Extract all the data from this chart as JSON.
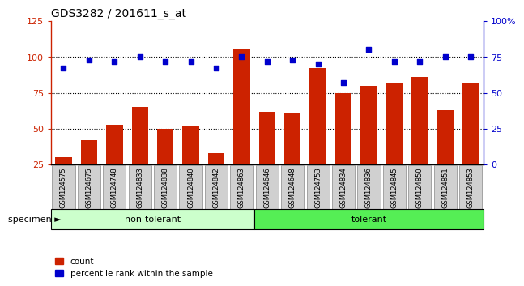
{
  "title": "GDS3282 / 201611_s_at",
  "categories": [
    "GSM124575",
    "GSM124675",
    "GSM124748",
    "GSM124833",
    "GSM124838",
    "GSM124840",
    "GSM124842",
    "GSM124863",
    "GSM124646",
    "GSM124648",
    "GSM124753",
    "GSM124834",
    "GSM124836",
    "GSM124845",
    "GSM124850",
    "GSM124851",
    "GSM124853"
  ],
  "bar_values": [
    30,
    42,
    53,
    65,
    50,
    52,
    33,
    105,
    62,
    61,
    92,
    75,
    80,
    82,
    86,
    63,
    82
  ],
  "dot_values": [
    67,
    73,
    72,
    75,
    72,
    72,
    67,
    75,
    72,
    73,
    70,
    57,
    80,
    72,
    72,
    75,
    75
  ],
  "bar_color": "#cc2200",
  "dot_color": "#0000cc",
  "ylim_left": [
    25,
    125
  ],
  "ylim_right": [
    0,
    100
  ],
  "yticks_left": [
    25,
    50,
    75,
    100,
    125
  ],
  "yticks_right": [
    0,
    25,
    50,
    75,
    100
  ],
  "ytick_labels_right": [
    "0",
    "25",
    "50",
    "75",
    "100%"
  ],
  "grid_lines": [
    50,
    75,
    100
  ],
  "group1_label": "non-tolerant",
  "group2_label": "tolerant",
  "group1_count": 8,
  "group1_color": "#ccffcc",
  "group2_color": "#55ee55",
  "specimen_label": "specimen",
  "legend_bar_label": "count",
  "legend_dot_label": "percentile rank within the sample",
  "background_color": "#ffffff",
  "xticklabel_bg": "#d0d0d0",
  "title_fontsize": 10,
  "bar_width": 0.65
}
